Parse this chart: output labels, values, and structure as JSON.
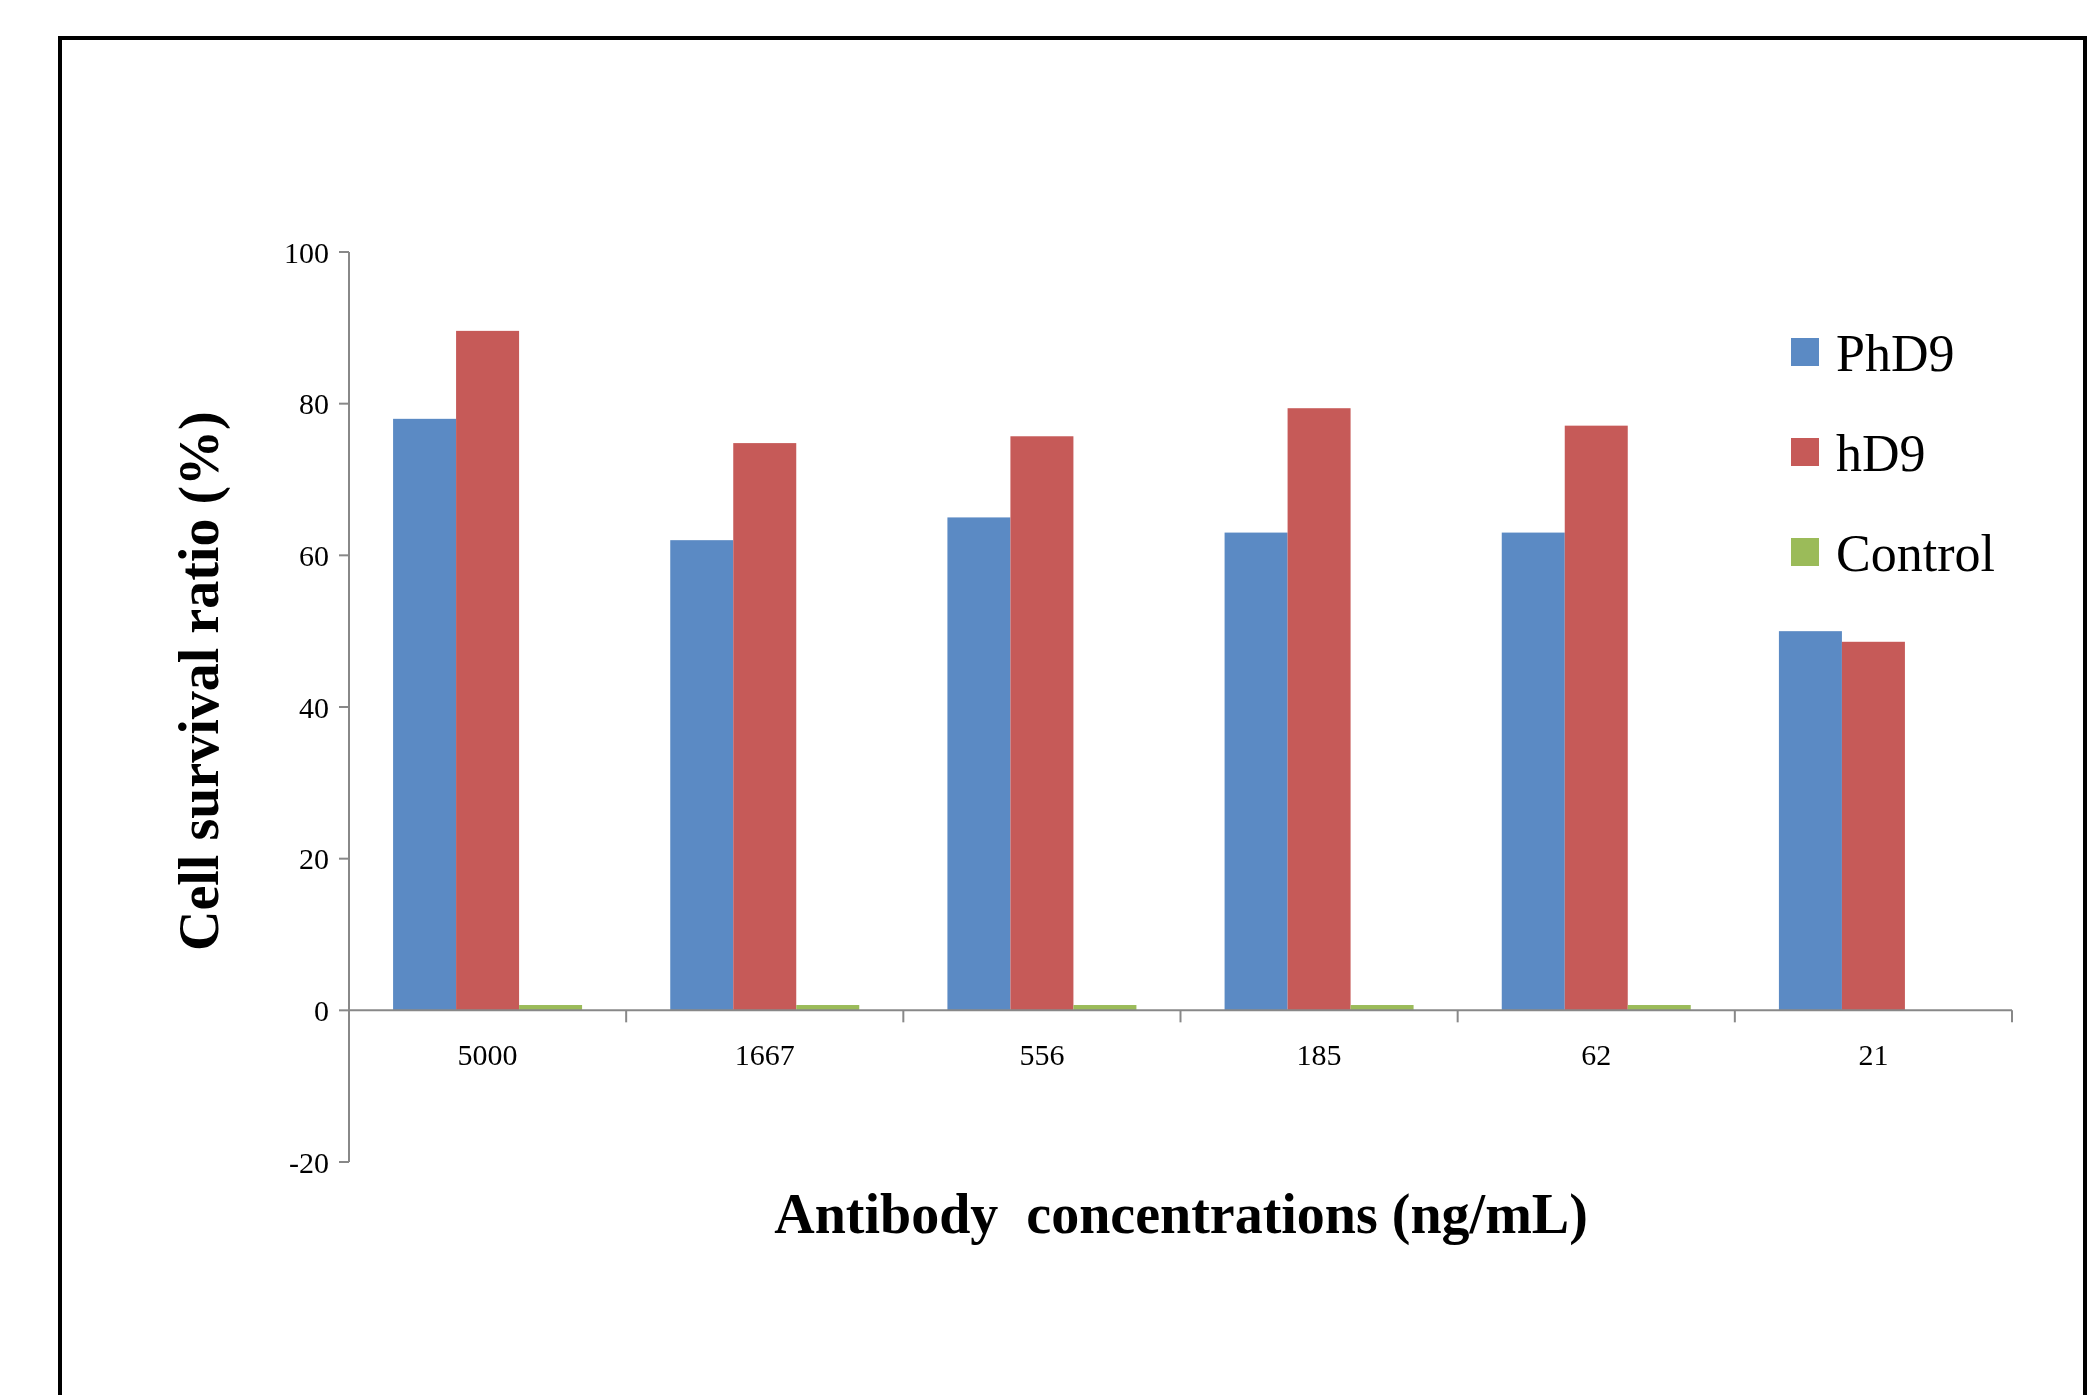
{
  "chart_data": {
    "type": "bar",
    "xlabel": "Antibody  concentrations (ng/mL)",
    "ylabel": "Cell survival ratio (%)",
    "categories": [
      "5000",
      "1667",
      "556",
      "185",
      "62",
      "21"
    ],
    "series": [
      {
        "name": "PhD9",
        "color": "#5b8ac4",
        "values": [
          78,
          62,
          65,
          63,
          63,
          50
        ]
      },
      {
        "name": "hD9",
        "color": "#c65a58",
        "values": [
          89.6,
          74.8,
          75.7,
          79.4,
          77.1,
          48.6
        ]
      },
      {
        "name": "Control",
        "color": "#9bbb59",
        "values": [
          0.7,
          0.7,
          0.7,
          0.7,
          0.7,
          0
        ]
      }
    ],
    "ylim": [
      -20,
      100
    ],
    "yticks": [
      -20,
      0,
      20,
      40,
      60,
      80,
      100
    ],
    "grid": false,
    "legend": "right"
  }
}
